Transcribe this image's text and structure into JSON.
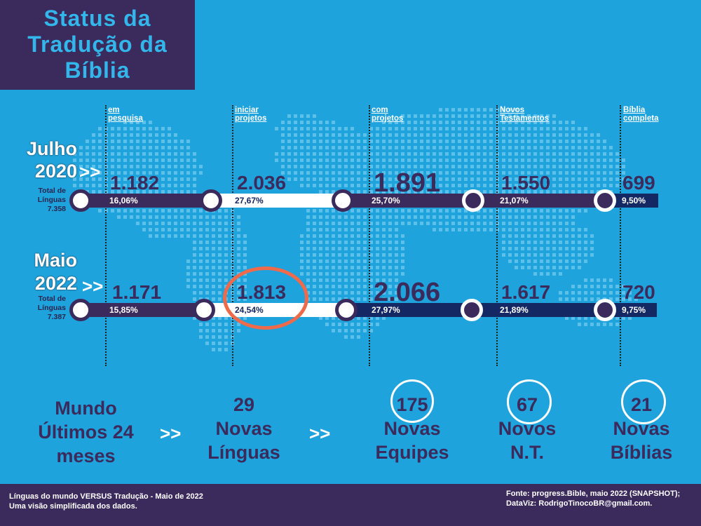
{
  "title_lines": [
    "Status da",
    "Tradução da",
    "Bíblia"
  ],
  "columns": [
    {
      "line1": "em",
      "line2": "pesquisa"
    },
    {
      "line1": "iniciar",
      "line2": "projetos"
    },
    {
      "line1": "com",
      "line2": "projetos"
    },
    {
      "line1": "Novos",
      "line2": "Testamentos"
    },
    {
      "line1": "Bíblia",
      "line2": "completa"
    }
  ],
  "chart_data": {
    "type": "bar",
    "title": "Status da Tradução da Bíblia",
    "categories": [
      "em pesquisa",
      "iniciar projetos",
      "com projetos",
      "Novos Testamentos",
      "Bíblia completa"
    ],
    "series": [
      {
        "name": "Julho 2020",
        "values": [
          1182,
          2036,
          1891,
          1550,
          699
        ],
        "percents": [
          16.06,
          27.67,
          25.7,
          21.07,
          9.5
        ],
        "total": 7358
      },
      {
        "name": "Maio 2022",
        "values": [
          1171,
          1813,
          2066,
          1617,
          720
        ],
        "percents": [
          15.85,
          24.54,
          27.97,
          21.89,
          9.75
        ],
        "total": 7387
      }
    ]
  },
  "rows": [
    {
      "label_line1": "Julho",
      "label_line2": "2020",
      "arrow": ">>",
      "total_label": "Total de",
      "total_label2": "Línguas",
      "total_value": "7.358",
      "values": [
        "1.182",
        "2.036",
        "1.891",
        "1.550",
        "699"
      ],
      "percents": [
        "16,06%",
        "27,67%",
        "25,70%",
        "21,07%",
        "9,50%"
      ]
    },
    {
      "label_line1": "Maio",
      "label_line2": "2022",
      "arrow": ">>",
      "total_label": "Total de",
      "total_label2": "Línguas",
      "total_value": "7.387",
      "values": [
        "1.171",
        "1.813",
        "2.066",
        "1.617",
        "720"
      ],
      "percents": [
        "15,85%",
        "24,54%",
        "27,97%",
        "21,89%",
        "9,75%"
      ]
    }
  ],
  "bottom": {
    "world_label": [
      "Mundo",
      "Últimos 24",
      "meses"
    ],
    "arrow": ">>",
    "items": [
      {
        "number": "29",
        "line1": "Novas",
        "line2": "Línguas"
      },
      {
        "number": "175",
        "line1": "Novas",
        "line2": "Equipes"
      },
      {
        "number": "67",
        "line1": "Novos",
        "line2": "N.T."
      },
      {
        "number": "21",
        "line1": "Novas",
        "line2": "Bíblias"
      }
    ]
  },
  "footer": {
    "left1": "Línguas do mundo VERSUS Tradução - Maio de 2022",
    "left2": "Uma visão simplificada dos dados.",
    "right1": "Fonte: progress.Bible, maio 2022 (SNAPSHOT);",
    "right2": "DataViz: RodrigoTinocoBR@gmail.com."
  },
  "colors": {
    "background": "#1fa3dc",
    "purple": "#3b2a5c",
    "navy": "#142863",
    "highlight": "#ef6a4a",
    "title": "#33b6ea"
  }
}
